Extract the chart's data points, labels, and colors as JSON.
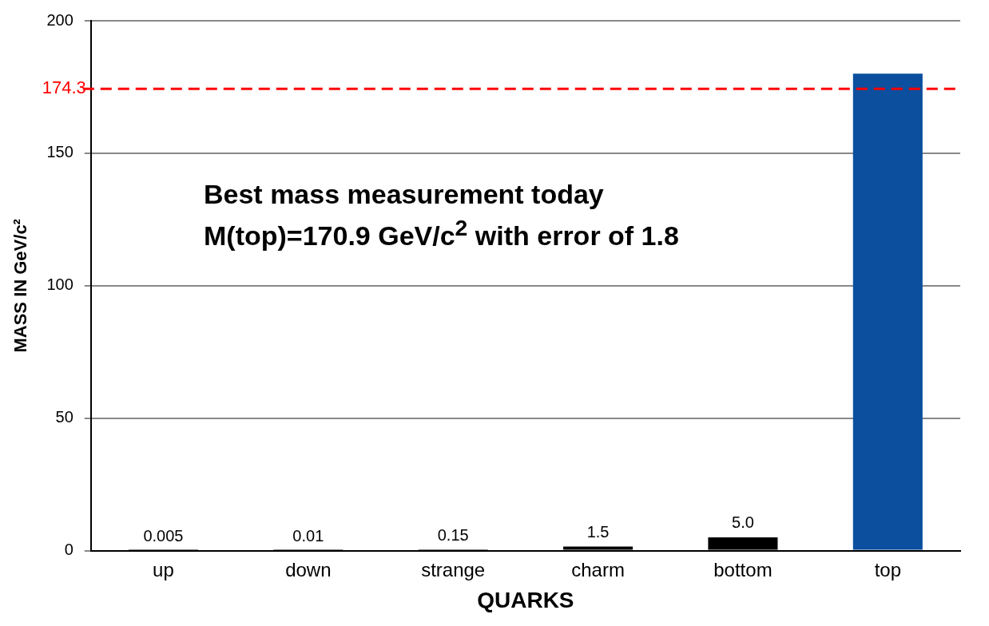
{
  "chart_data": {
    "type": "bar",
    "xlabel": "QUARKS",
    "ylabel": "MASS IN GeV/c²",
    "categories": [
      "up",
      "down",
      "strange",
      "charm",
      "bottom",
      "top"
    ],
    "values": [
      0.005,
      0.01,
      0.15,
      1.5,
      5.0,
      180
    ],
    "colors": [
      "#000000",
      "#000000",
      "#000000",
      "#000000",
      "#000000",
      "#0b4f9e"
    ],
    "value_labels": [
      "0.005",
      "0.01",
      "0.15",
      "1.5",
      "5.0",
      null
    ],
    "ylim": [
      0,
      200
    ],
    "yticks": [
      0,
      50,
      100,
      150,
      200
    ],
    "grid": "y",
    "legend": false,
    "ref_lines": [
      {
        "axis": "y",
        "value": 174.3,
        "label": "174.3",
        "color": "#ff0000",
        "line_style": "dashed"
      }
    ],
    "annotations": [
      "Best mass measurement today",
      "M(top)=170.9 GeV/c$^{2}$ with error of 1.8"
    ]
  }
}
